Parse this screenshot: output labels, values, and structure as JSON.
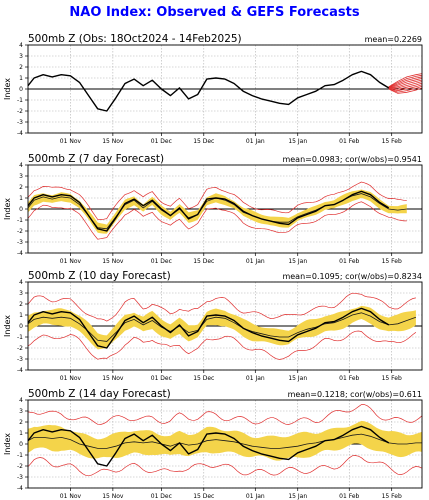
{
  "page_title": "NAO Index: Observed & GEFS Forecasts",
  "colors": {
    "observed": "#000000",
    "ensemble_spread": "#f4d44a",
    "ensemble_range": "#e03030",
    "title": "#0000ff"
  },
  "x_tick_labels": [
    "01 Nov",
    "15 Nov",
    "01 Dec",
    "15 Dec",
    "01 Jan",
    "15 Jan",
    "01 Feb",
    "15 Feb"
  ],
  "chart_data": [
    {
      "type": "line",
      "title": "500mb Z (Obs: 18Oct2024 - 14Feb2025)",
      "stats": "mean=0.2269",
      "ylabel": "Index",
      "ylim": [
        -4,
        4
      ],
      "yticks": [
        -4,
        -3,
        -2,
        -1,
        0,
        1,
        2,
        3,
        4
      ],
      "x_start": "18Oct2024",
      "x_ticks_days": [
        14,
        28,
        44,
        58,
        75,
        89,
        106,
        120
      ],
      "x_range_days": [
        0,
        130
      ],
      "grid": true,
      "series": [
        {
          "x": [
            0,
            2,
            5,
            8,
            11,
            14,
            17,
            20,
            23,
            26,
            29,
            32,
            35,
            38,
            41,
            44,
            47,
            50,
            53,
            56,
            59,
            62,
            65,
            68,
            71,
            74,
            77,
            80,
            83,
            86,
            89,
            92,
            95,
            98,
            101,
            104,
            107,
            110,
            113,
            116,
            119
          ],
          "values": [
            0.3,
            1.0,
            1.3,
            1.1,
            1.3,
            1.2,
            0.6,
            -0.6,
            -1.8,
            -2.0,
            -0.8,
            0.5,
            0.9,
            0.3,
            0.8,
            0.0,
            -0.6,
            0.1,
            -0.9,
            -0.5,
            0.9,
            1.0,
            0.9,
            0.5,
            -0.2,
            -0.6,
            -0.9,
            -1.1,
            -1.3,
            -1.4,
            -0.8,
            -0.5,
            -0.2,
            0.3,
            0.4,
            0.8,
            1.3,
            1.6,
            1.3,
            0.6,
            0.1
          ]
        }
      ],
      "forecast_members": {
        "x": [
          119,
          122,
          125,
          128,
          130
        ],
        "lows": [
          0.0,
          -0.4,
          -0.3,
          -0.1,
          0.1
        ],
        "highs": [
          0.2,
          0.7,
          1.1,
          1.3,
          1.4
        ]
      }
    },
    {
      "type": "line",
      "title": "500mb Z (7 day Forecast)",
      "stats": "mean=0.0983; cor(w/obs)=0.9541",
      "ylabel": "Index",
      "ylim": [
        -4,
        4
      ],
      "yticks": [
        -4,
        -3,
        -2,
        -1,
        0,
        1,
        2,
        3,
        4
      ],
      "x_ticks_days": [
        14,
        28,
        44,
        58,
        75,
        89,
        106,
        120
      ],
      "x_range_days": [
        0,
        130
      ],
      "grid": true,
      "series": [
        {
          "name": "observed",
          "x": [
            0,
            2,
            5,
            8,
            11,
            14,
            17,
            20,
            23,
            26,
            29,
            32,
            35,
            38,
            41,
            44,
            47,
            50,
            53,
            56,
            59,
            62,
            65,
            68,
            71,
            74,
            77,
            80,
            83,
            86,
            89,
            92,
            95,
            98,
            101,
            104,
            107,
            110,
            113,
            116,
            119
          ],
          "values": [
            0.3,
            1.0,
            1.3,
            1.1,
            1.3,
            1.2,
            0.6,
            -0.6,
            -1.8,
            -2.0,
            -0.8,
            0.5,
            0.9,
            0.3,
            0.8,
            0.0,
            -0.6,
            0.1,
            -0.9,
            -0.5,
            0.9,
            1.0,
            0.9,
            0.5,
            -0.2,
            -0.6,
            -0.9,
            -1.1,
            -1.3,
            -1.4,
            -0.8,
            -0.5,
            -0.2,
            0.3,
            0.4,
            0.8,
            1.3,
            1.6,
            1.3,
            0.6,
            0.1
          ]
        },
        {
          "name": "ensemble mean",
          "x": [
            0,
            2,
            5,
            8,
            11,
            14,
            17,
            20,
            23,
            26,
            29,
            32,
            35,
            38,
            41,
            44,
            47,
            50,
            53,
            56,
            59,
            62,
            65,
            68,
            71,
            74,
            77,
            80,
            83,
            86,
            89,
            92,
            95,
            98,
            101,
            104,
            107,
            110,
            113,
            116,
            119,
            122,
            125
          ],
          "values": [
            0.1,
            0.8,
            1.1,
            0.9,
            1.1,
            1.0,
            0.4,
            -0.6,
            -1.7,
            -1.8,
            -0.7,
            0.4,
            0.8,
            0.1,
            0.7,
            -0.1,
            -0.6,
            0.0,
            -0.8,
            -0.5,
            0.7,
            1.0,
            0.8,
            0.4,
            -0.3,
            -0.6,
            -0.9,
            -1.1,
            -1.2,
            -1.2,
            -0.7,
            -0.4,
            -0.1,
            0.3,
            0.4,
            0.8,
            1.2,
            1.4,
            1.1,
            0.5,
            0.0,
            -0.1,
            0.0
          ]
        }
      ],
      "spread_band": 0.4,
      "range_band": 0.9
    },
    {
      "type": "line",
      "title": "500mb Z (10 day Forecast)",
      "stats": "mean=0.1095; cor(w/obs)=0.8234",
      "ylabel": "Index",
      "ylim": [
        -4,
        4
      ],
      "yticks": [
        -4,
        -3,
        -2,
        -1,
        0,
        1,
        2,
        3,
        4
      ],
      "x_ticks_days": [
        14,
        28,
        44,
        58,
        75,
        89,
        106,
        120
      ],
      "x_range_days": [
        0,
        130
      ],
      "grid": true,
      "series": [
        {
          "name": "observed",
          "x": [
            0,
            2,
            5,
            8,
            11,
            14,
            17,
            20,
            23,
            26,
            29,
            32,
            35,
            38,
            41,
            44,
            47,
            50,
            53,
            56,
            59,
            62,
            65,
            68,
            71,
            74,
            77,
            80,
            83,
            86,
            89,
            92,
            95,
            98,
            101,
            104,
            107,
            110,
            113,
            116,
            119
          ],
          "values": [
            0.3,
            1.0,
            1.3,
            1.1,
            1.3,
            1.2,
            0.6,
            -0.6,
            -1.8,
            -2.0,
            -0.8,
            0.5,
            0.9,
            0.3,
            0.8,
            0.0,
            -0.6,
            0.1,
            -0.9,
            -0.5,
            0.9,
            1.0,
            0.9,
            0.5,
            -0.2,
            -0.6,
            -0.9,
            -1.1,
            -1.3,
            -1.4,
            -0.8,
            -0.5,
            -0.2,
            0.3,
            0.4,
            0.8,
            1.3,
            1.6,
            1.3,
            0.6,
            0.1
          ]
        },
        {
          "name": "ensemble mean",
          "x": [
            0,
            2,
            5,
            8,
            11,
            14,
            17,
            20,
            23,
            26,
            29,
            32,
            35,
            38,
            41,
            44,
            47,
            50,
            53,
            56,
            59,
            62,
            65,
            68,
            71,
            74,
            77,
            80,
            83,
            86,
            89,
            92,
            95,
            98,
            101,
            104,
            107,
            110,
            113,
            116,
            119,
            122,
            125,
            128
          ],
          "values": [
            0.2,
            0.6,
            0.8,
            0.7,
            0.8,
            0.7,
            0.2,
            -0.5,
            -1.3,
            -1.4,
            -0.6,
            0.3,
            0.6,
            0.1,
            0.5,
            -0.1,
            -0.5,
            0.0,
            -0.6,
            -0.4,
            0.6,
            0.8,
            0.7,
            0.3,
            -0.2,
            -0.5,
            -0.7,
            -0.9,
            -1.0,
            -1.0,
            -0.6,
            -0.3,
            -0.1,
            0.2,
            0.3,
            0.6,
            1.0,
            1.2,
            0.9,
            0.4,
            0.1,
            0.2,
            0.5,
            0.8
          ]
        }
      ],
      "spread_band": 0.7,
      "range_band": 1.7
    },
    {
      "type": "line",
      "title": "500mb Z (14 day Forecast)",
      "stats": "mean=0.1218; cor(w/obs)=0.611",
      "ylabel": "Index",
      "ylim": [
        -4,
        4
      ],
      "yticks": [
        -4,
        -3,
        -2,
        -1,
        0,
        1,
        2,
        3,
        4
      ],
      "x_ticks_days": [
        14,
        28,
        44,
        58,
        75,
        89,
        106,
        120
      ],
      "x_range_days": [
        0,
        130
      ],
      "grid": true,
      "series": [
        {
          "name": "observed",
          "x": [
            0,
            2,
            5,
            8,
            11,
            14,
            17,
            20,
            23,
            26,
            29,
            32,
            35,
            38,
            41,
            44,
            47,
            50,
            53,
            56,
            59,
            62,
            65,
            68,
            71,
            74,
            77,
            80,
            83,
            86,
            89,
            92,
            95,
            98,
            101,
            104,
            107,
            110,
            113,
            116,
            119
          ],
          "values": [
            0.3,
            1.0,
            1.3,
            1.1,
            1.3,
            1.2,
            0.6,
            -0.6,
            -1.8,
            -2.0,
            -0.8,
            0.5,
            0.9,
            0.3,
            0.8,
            0.0,
            -0.6,
            0.1,
            -0.9,
            -0.5,
            0.9,
            1.0,
            0.9,
            0.5,
            -0.2,
            -0.6,
            -0.9,
            -1.1,
            -1.3,
            -1.4,
            -0.8,
            -0.5,
            -0.2,
            0.3,
            0.4,
            0.8,
            1.3,
            1.6,
            1.3,
            0.6,
            0.1
          ]
        },
        {
          "name": "ensemble mean",
          "x": [
            0,
            2,
            5,
            8,
            11,
            14,
            17,
            20,
            23,
            26,
            29,
            32,
            35,
            38,
            41,
            44,
            47,
            50,
            53,
            56,
            59,
            62,
            65,
            68,
            71,
            74,
            77,
            80,
            83,
            86,
            89,
            92,
            95,
            98,
            101,
            104,
            107,
            110,
            113,
            116,
            119,
            122,
            125,
            128,
            130
          ],
          "values": [
            0.3,
            0.6,
            0.6,
            0.5,
            0.6,
            0.4,
            0.0,
            -0.2,
            -0.4,
            -0.4,
            -0.2,
            0.1,
            0.2,
            0.1,
            0.2,
            0.0,
            -0.2,
            0.1,
            -0.1,
            0.0,
            0.3,
            0.4,
            0.3,
            0.2,
            0.0,
            -0.2,
            -0.3,
            -0.4,
            -0.4,
            -0.3,
            -0.2,
            0.0,
            0.1,
            0.3,
            0.4,
            0.6,
            0.8,
            0.9,
            0.7,
            0.4,
            0.1,
            0.0,
            0.0,
            0.1,
            0.1
          ]
        }
      ],
      "spread_band": 1.0,
      "range_band": 2.3
    }
  ]
}
